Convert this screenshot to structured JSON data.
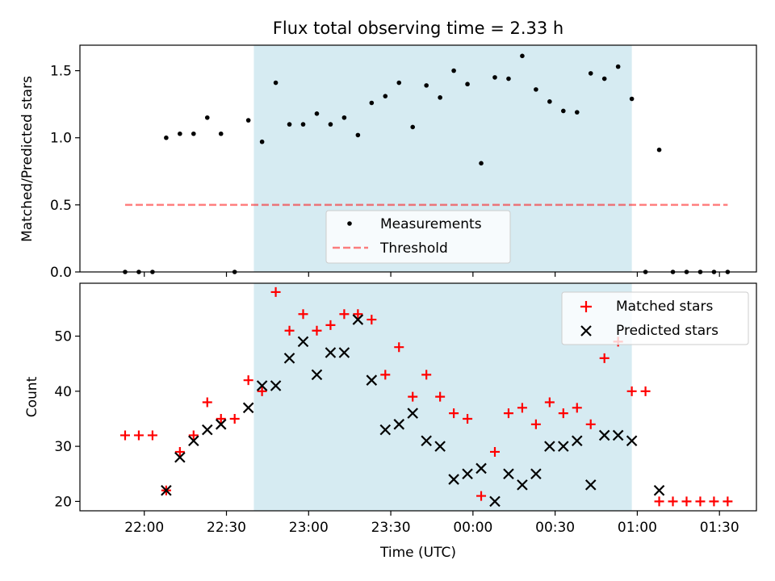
{
  "title": "Flux total observing time = 2.33 h",
  "xlabel": "Time (UTC)",
  "colors": {
    "highlight": "#add8e6",
    "threshold": "#ff0000",
    "matched": "#ff0000",
    "predicted": "#000000",
    "measurement": "#000000"
  },
  "chart_data": [
    {
      "type": "scatter",
      "ylabel": "Matched/Predicted stars",
      "ylim": [
        0,
        1.69
      ],
      "yticks": [
        "0.0",
        "0.5",
        "1.0",
        "1.5"
      ],
      "highlight_span": [
        "22:40",
        "00:58"
      ],
      "threshold": 0.5,
      "threshold_span": [
        "21:53",
        "01:33"
      ],
      "legend": {
        "placement": "lower-center",
        "entries": [
          "Measurements",
          "Threshold"
        ]
      },
      "series": [
        {
          "name": "Measurements",
          "x": [
            "21:53",
            "21:58",
            "22:03",
            "22:08",
            "22:13",
            "22:18",
            "22:23",
            "22:28",
            "22:33",
            "22:38",
            "22:43",
            "22:48",
            "22:53",
            "22:58",
            "23:03",
            "23:08",
            "23:13",
            "23:18",
            "23:23",
            "23:28",
            "23:33",
            "23:38",
            "23:43",
            "23:48",
            "23:53",
            "23:58",
            "00:03",
            "00:08",
            "00:13",
            "00:18",
            "00:23",
            "00:28",
            "00:33",
            "00:38",
            "00:43",
            "00:48",
            "00:53",
            "00:58",
            "01:03",
            "01:08",
            "01:13",
            "01:18",
            "01:23",
            "01:28",
            "01:33"
          ],
          "y": [
            0,
            0,
            0,
            1.0,
            1.03,
            1.03,
            1.15,
            1.03,
            0,
            1.13,
            0.97,
            1.41,
            1.1,
            1.1,
            1.18,
            1.1,
            1.15,
            1.02,
            1.26,
            1.31,
            1.41,
            1.08,
            1.39,
            1.3,
            1.5,
            1.4,
            0.81,
            1.45,
            1.44,
            1.61,
            1.36,
            1.27,
            1.2,
            1.19,
            1.48,
            1.44,
            1.53,
            1.29,
            0,
            0.91,
            0,
            0,
            0,
            0,
            0
          ]
        }
      ]
    },
    {
      "type": "scatter",
      "ylabel": "Count",
      "ylim": [
        18.3,
        59.6
      ],
      "yticks": [
        "20",
        "30",
        "40",
        "50"
      ],
      "xticks": [
        "22:00",
        "22:30",
        "23:00",
        "23:30",
        "00:00",
        "00:30",
        "01:00",
        "01:30"
      ],
      "highlight_span": [
        "22:40",
        "00:58"
      ],
      "legend": {
        "placement": "top-right",
        "entries": [
          "Matched stars",
          "Predicted stars"
        ]
      },
      "series": [
        {
          "name": "Matched stars",
          "x": [
            "21:53",
            "21:58",
            "22:03",
            "22:08",
            "22:13",
            "22:18",
            "22:23",
            "22:28",
            "22:33",
            "22:38",
            "22:43",
            "22:48",
            "22:53",
            "22:58",
            "23:03",
            "23:08",
            "23:13",
            "23:18",
            "23:23",
            "23:28",
            "23:33",
            "23:38",
            "23:43",
            "23:48",
            "23:53",
            "23:58",
            "00:03",
            "00:08",
            "00:13",
            "00:18",
            "00:23",
            "00:28",
            "00:33",
            "00:38",
            "00:43",
            "00:48",
            "00:53",
            "00:58",
            "01:03",
            "01:08",
            "01:13",
            "01:18",
            "01:23",
            "01:28",
            "01:33"
          ],
          "y": [
            32,
            32,
            32,
            22,
            29,
            32,
            38,
            35,
            35,
            42,
            40,
            58,
            51,
            54,
            51,
            52,
            54,
            54,
            53,
            43,
            48,
            39,
            43,
            39,
            36,
            35,
            21,
            29,
            36,
            37,
            34,
            38,
            36,
            37,
            34,
            46,
            49,
            40,
            40,
            20,
            20,
            20,
            20,
            20,
            20
          ]
        },
        {
          "name": "Predicted stars",
          "x": [
            "22:08",
            "22:13",
            "22:18",
            "22:23",
            "22:28",
            "22:38",
            "22:43",
            "22:48",
            "22:53",
            "22:58",
            "23:03",
            "23:08",
            "23:13",
            "23:18",
            "23:23",
            "23:28",
            "23:33",
            "23:38",
            "23:43",
            "23:48",
            "23:53",
            "23:58",
            "00:03",
            "00:08",
            "00:13",
            "00:18",
            "00:23",
            "00:28",
            "00:33",
            "00:38",
            "00:43",
            "00:48",
            "00:53",
            "00:58",
            "01:08"
          ],
          "y": [
            22,
            28,
            31,
            33,
            34,
            37,
            41,
            41,
            46,
            49,
            43,
            47,
            47,
            53,
            42,
            33,
            34,
            36,
            31,
            30,
            24,
            25,
            26,
            20,
            25,
            23,
            25,
            30,
            30,
            31,
            23,
            32,
            32,
            31,
            22
          ]
        }
      ]
    }
  ]
}
